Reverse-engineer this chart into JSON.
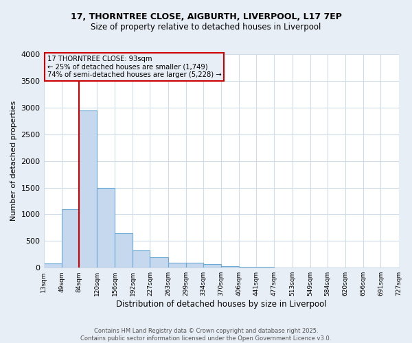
{
  "title1": "17, THORNTREE CLOSE, AIGBURTH, LIVERPOOL, L17 7EP",
  "title2": "Size of property relative to detached houses in Liverpool",
  "xlabel": "Distribution of detached houses by size in Liverpool",
  "ylabel": "Number of detached properties",
  "bin_edges": [
    13,
    49,
    84,
    120,
    156,
    192,
    227,
    263,
    299,
    334,
    370,
    406,
    441,
    477,
    513,
    549,
    584,
    620,
    656,
    691,
    727
  ],
  "bar_heights": [
    75,
    1100,
    2950,
    1500,
    650,
    330,
    200,
    90,
    90,
    65,
    30,
    20,
    20,
    5,
    5,
    0,
    0,
    0,
    0,
    0
  ],
  "bar_color": "#c5d8ee",
  "bar_edgecolor": "#6aaad4",
  "red_line_x": 84,
  "annotation_title": "17 THORNTREE CLOSE: 93sqm",
  "annotation_line1": "← 25% of detached houses are smaller (1,749)",
  "annotation_line2": "74% of semi-detached houses are larger (5,228) →",
  "annotation_box_color": "#cc0000",
  "ylim": [
    0,
    4000
  ],
  "yticks": [
    0,
    500,
    1000,
    1500,
    2000,
    2500,
    3000,
    3500,
    4000
  ],
  "footnote1": "Contains HM Land Registry data © Crown copyright and database right 2025.",
  "footnote2": "Contains public sector information licensed under the Open Government Licence v3.0.",
  "plot_bg_color": "#ffffff",
  "fig_bg_color": "#e8eef5",
  "grid_color": "#d0dce8",
  "title_fontsize": 9,
  "subtitle_fontsize": 8.5
}
